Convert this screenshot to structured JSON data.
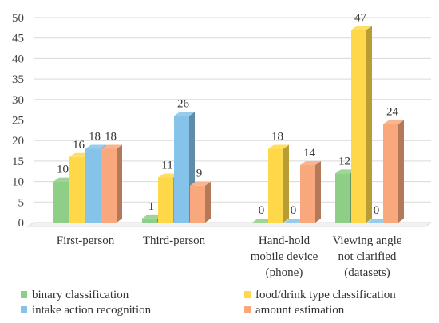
{
  "chart_data": {
    "type": "bar",
    "style": "3d-clustered-column",
    "title": "",
    "xlabel": "",
    "ylabel": "",
    "ylim": [
      0,
      50
    ],
    "yticks": [
      0,
      5,
      10,
      15,
      20,
      25,
      30,
      35,
      40,
      45,
      50
    ],
    "grid": true,
    "legend_position": "bottom",
    "categories": [
      "First-person",
      "Third-person",
      "Hand-hold mobile device (phone)",
      "Viewing angle not clarified (datasets)"
    ],
    "category_lines": [
      [
        "First-person"
      ],
      [
        "Third-person"
      ],
      [
        "Hand-hold",
        "mobile device",
        "(phone)"
      ],
      [
        "Viewing angle",
        "not clarified",
        "(datasets)"
      ]
    ],
    "series": [
      {
        "name": "binary classification",
        "values": [
          10,
          1,
          0,
          12
        ],
        "color": "#8fce86"
      },
      {
        "name": "food/drink type classification",
        "values": [
          16,
          11,
          18,
          47
        ],
        "color": "#ffd84a"
      },
      {
        "name": "intake action recognition",
        "values": [
          18,
          26,
          0,
          0
        ],
        "color": "#86c3ea"
      },
      {
        "name": "amount estimation",
        "values": [
          18,
          9,
          14,
          24
        ],
        "color": "#f8a87c"
      }
    ]
  }
}
